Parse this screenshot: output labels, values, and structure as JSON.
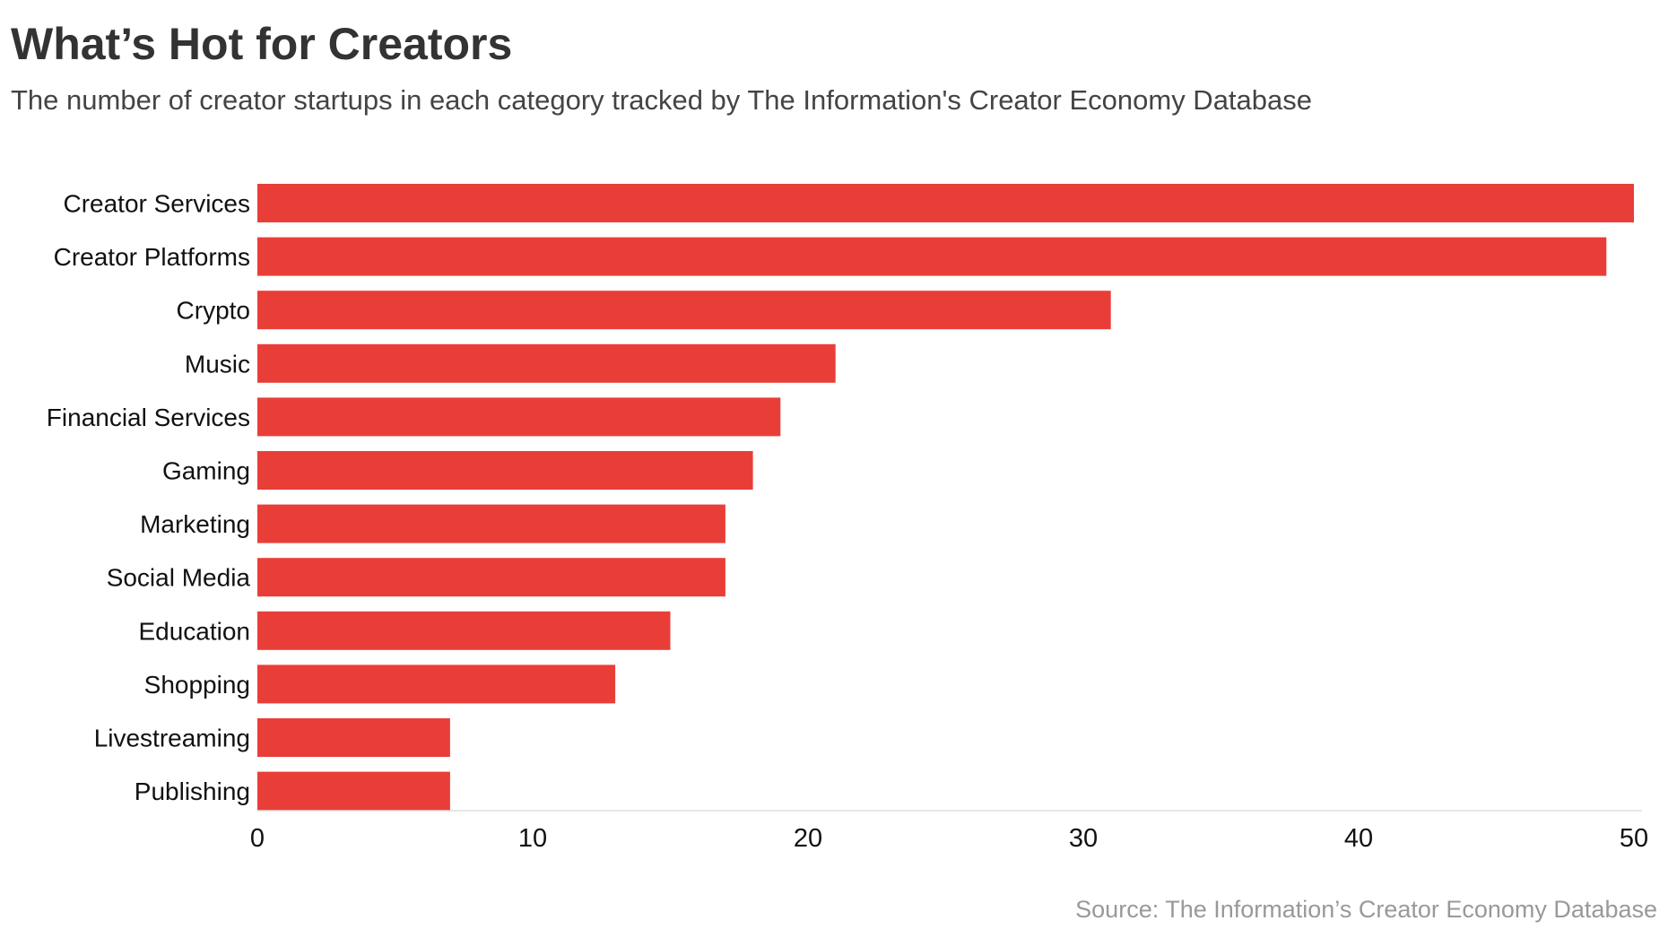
{
  "chart_data": {
    "type": "bar",
    "orientation": "horizontal",
    "title": "What’s Hot for Creators",
    "subtitle": "The number of creator startups in each category tracked by The Information's Creator Economy Database",
    "source": "Source: The Information’s Creator Economy Database",
    "categories": [
      "Creator Services",
      "Creator Platforms",
      "Crypto",
      "Music",
      "Financial Services",
      "Gaming",
      "Marketing",
      "Social Media",
      "Education",
      "Shopping",
      "Livestreaming",
      "Publishing"
    ],
    "values": [
      50,
      49,
      31,
      21,
      19,
      18,
      17,
      17,
      15,
      13,
      7,
      7
    ],
    "xlim": [
      0,
      50
    ],
    "xticks": [
      "0",
      "10",
      "20",
      "30",
      "40",
      "50"
    ],
    "xlabel": "",
    "ylabel": "",
    "grid": false,
    "bar_color": "#e93e38"
  }
}
